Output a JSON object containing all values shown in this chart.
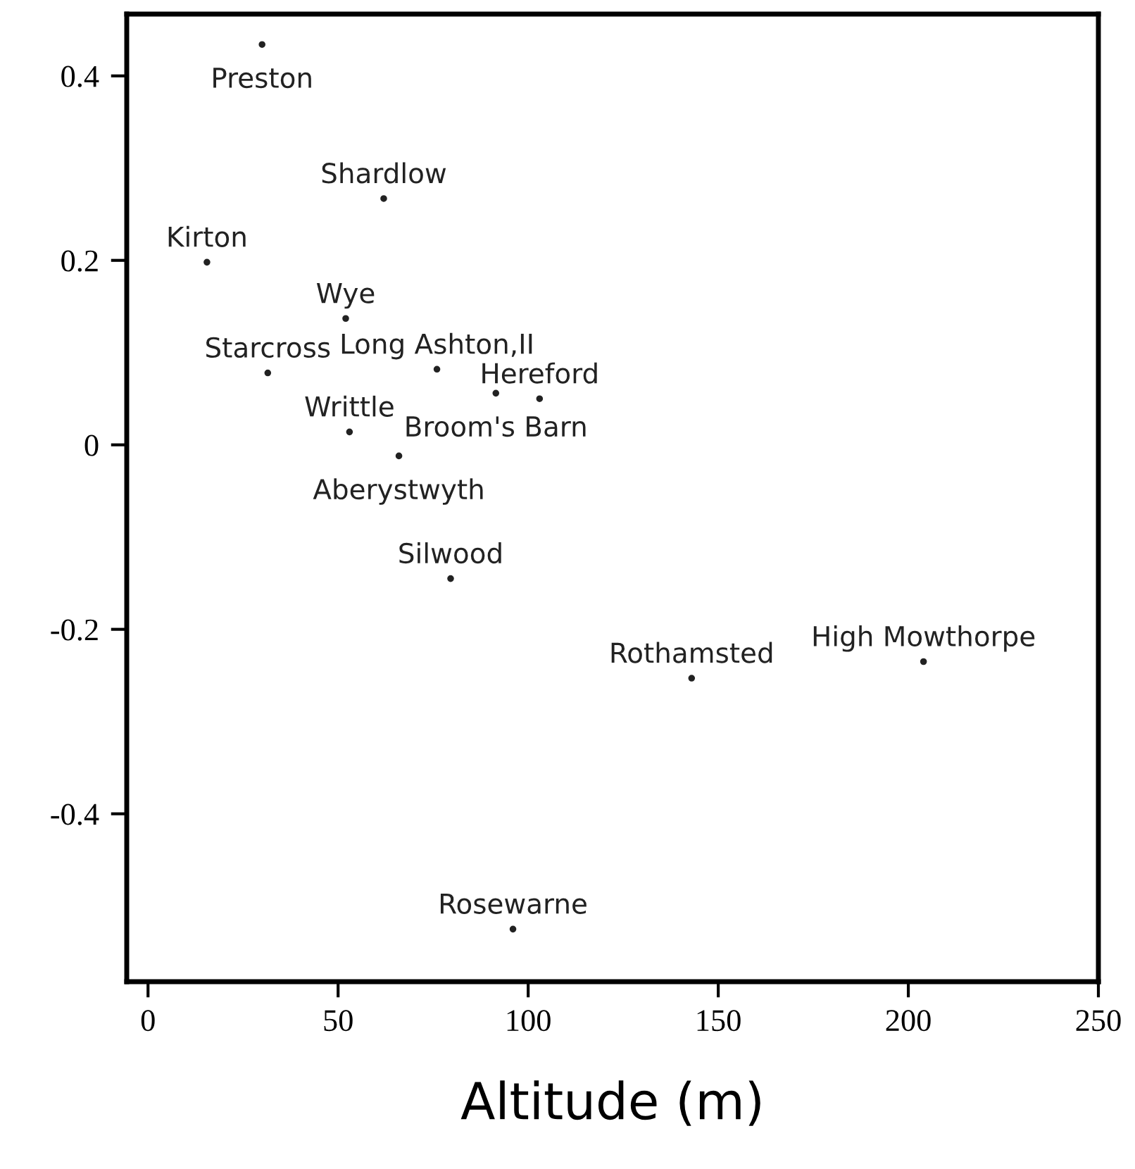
{
  "chart_data": {
    "type": "scatter",
    "xlabel": "Altitude (m)",
    "marker": "circle",
    "grid": false,
    "x": [
      30,
      62,
      15.5,
      52,
      31.5,
      76,
      91.5,
      103,
      53,
      66,
      79.6,
      143,
      204,
      96
    ],
    "values": [
      0.434,
      0.267,
      0.198,
      0.137,
      0.078,
      0.082,
      0.056,
      0.05,
      0.014,
      -0.012,
      -0.145,
      -0.253,
      -0.235,
      -0.525
    ],
    "value_labels": [
      "Preston",
      "Shardlow",
      "Kirton",
      "Wye",
      "Starcross",
      "Long Ashton,II",
      "Broom's Barn",
      "Hereford",
      "Writtle",
      "Aberystwyth",
      "Silwood",
      "Rothamsted",
      "High Mowthorpe",
      "Rosewarne"
    ],
    "xlim": [
      -5.6,
      250
    ],
    "ylim": [
      -0.582,
      0.467
    ],
    "xticks": [
      0,
      50,
      100,
      150,
      200,
      250
    ],
    "yticks": [
      -0.4,
      -0.2,
      0,
      0.2,
      0.4
    ]
  }
}
